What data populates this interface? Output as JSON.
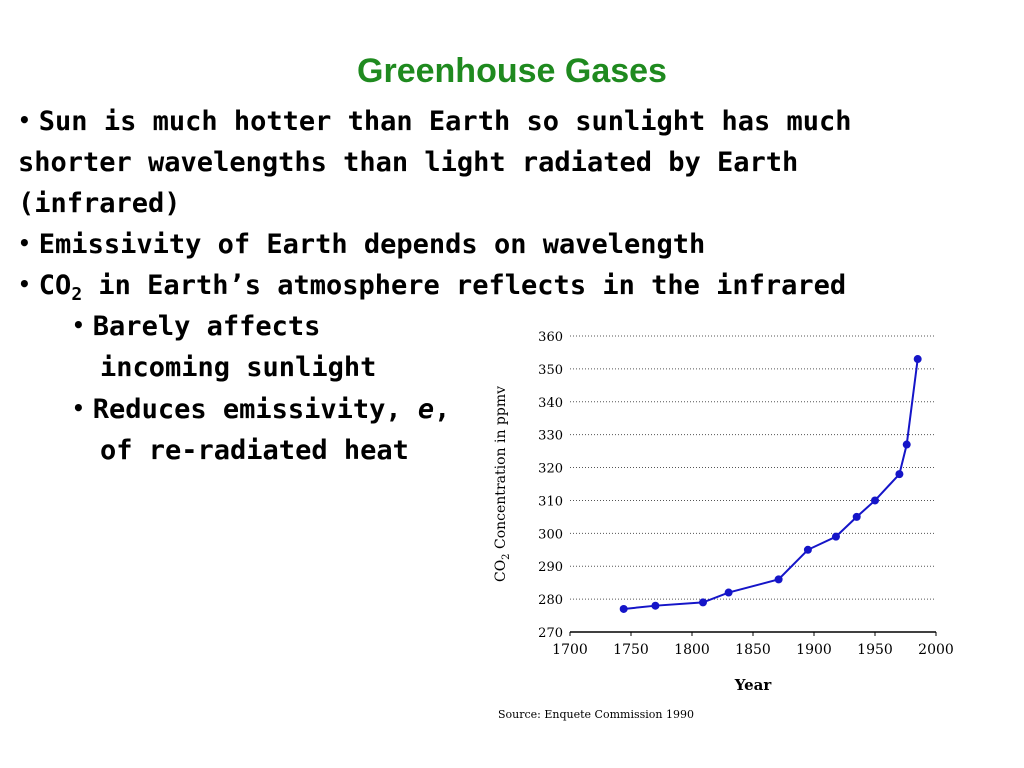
{
  "slide": {
    "title": "Greenhouse Gases",
    "bullet1": {
      "lines": [
        "Sun is much hotter than Earth so sunlight has much",
        "shorter wavelengths than light radiated by Earth",
        "(infrared)"
      ]
    },
    "bullet2": {
      "text": "Emissivity of Earth depends on wavelength"
    },
    "bullet3": {
      "prefix": "CO",
      "subscript": "2",
      "rest": " in Earth’s atmosphere reflects in the infrared"
    },
    "sub1": {
      "lines": [
        "Barely affects",
        "incoming sunlight"
      ]
    },
    "sub2": {
      "prefix": "Reduces emissivity, ",
      "italic": "e",
      "suffix": ",",
      "line2": "of re-radiated heat"
    },
    "bullet_glyph": "•"
  },
  "chart_data": {
    "type": "line",
    "xlabel": "Year",
    "ylabel_prefix": "CO",
    "ylabel_sub": "2",
    "ylabel_rest": " Concentration in ppmv",
    "xlim": [
      1700,
      2000
    ],
    "ylim": [
      270,
      360
    ],
    "xticks": [
      1700,
      1750,
      1800,
      1850,
      1900,
      1950,
      2000
    ],
    "yticks": [
      270,
      280,
      290,
      300,
      310,
      320,
      330,
      340,
      350,
      360
    ],
    "grid": "horizontal dotted",
    "series": [
      {
        "color": "#1515c8",
        "x": [
          1744,
          1770,
          1809,
          1830,
          1871,
          1895,
          1918,
          1935,
          1950,
          1970,
          1976,
          1985
        ],
        "y": [
          277,
          278,
          279,
          282,
          286,
          295,
          299,
          305,
          310,
          318,
          327,
          353
        ]
      }
    ],
    "source": "Source: Enquete Commission 1990"
  }
}
